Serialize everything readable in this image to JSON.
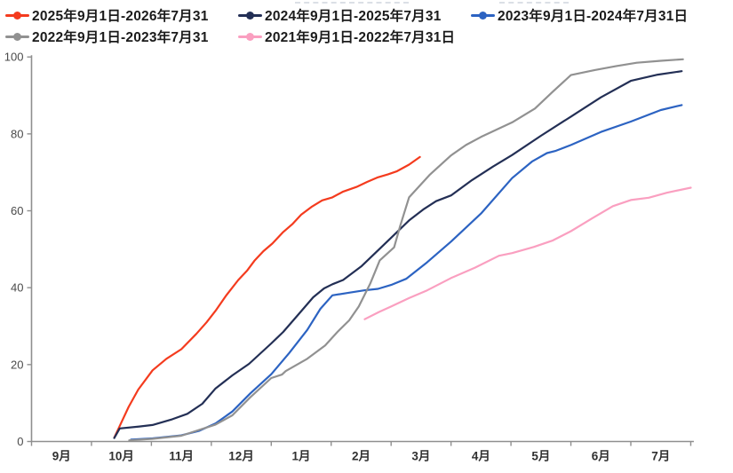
{
  "chart_data": {
    "type": "line",
    "title": "",
    "xlabel": "",
    "ylabel": "",
    "x_unit": "months_after_september_1",
    "xlim": [
      0,
      11
    ],
    "ylim": [
      0,
      100
    ],
    "grid": false,
    "legend_position": "top-left",
    "x_tick_labels": [
      "9月",
      "10月",
      "11月",
      "12月",
      "1月",
      "2月",
      "3月",
      "4月",
      "5月",
      "6月",
      "7月"
    ],
    "y_ticks": [
      0,
      20,
      40,
      60,
      80,
      100
    ],
    "axis_color": "#8f8f8f",
    "series": [
      {
        "name": "2025年9月1日-2026年7月31",
        "color": "#f43b1e",
        "points": [
          [
            1.38,
            1
          ],
          [
            1.5,
            5
          ],
          [
            1.62,
            9
          ],
          [
            1.78,
            13.5
          ],
          [
            2.02,
            18.5
          ],
          [
            2.25,
            21.5
          ],
          [
            2.5,
            24
          ],
          [
            2.75,
            28
          ],
          [
            2.92,
            31
          ],
          [
            3.07,
            34
          ],
          [
            3.25,
            38
          ],
          [
            3.45,
            42
          ],
          [
            3.6,
            44.5
          ],
          [
            3.72,
            47
          ],
          [
            3.87,
            49.5
          ],
          [
            4.02,
            51.5
          ],
          [
            4.2,
            54.5
          ],
          [
            4.35,
            56.5
          ],
          [
            4.5,
            59
          ],
          [
            4.67,
            61
          ],
          [
            4.85,
            62.7
          ],
          [
            5.02,
            63.5
          ],
          [
            5.2,
            65
          ],
          [
            5.42,
            66.2
          ],
          [
            5.6,
            67.5
          ],
          [
            5.78,
            68.7
          ],
          [
            5.95,
            69.5
          ],
          [
            6.1,
            70.3
          ],
          [
            6.3,
            72
          ],
          [
            6.48,
            74
          ]
        ]
      },
      {
        "name": "2024年9月1日-2025年7月31",
        "color": "#232f55",
        "points": [
          [
            1.38,
            0.9
          ],
          [
            1.47,
            3.4
          ],
          [
            1.8,
            3.9
          ],
          [
            2.02,
            4.3
          ],
          [
            2.35,
            5.8
          ],
          [
            2.6,
            7.2
          ],
          [
            2.85,
            9.8
          ],
          [
            3.07,
            13.8
          ],
          [
            3.35,
            17.2
          ],
          [
            3.63,
            20.2
          ],
          [
            4.0,
            25.5
          ],
          [
            4.2,
            28.5
          ],
          [
            4.45,
            33
          ],
          [
            4.7,
            37.5
          ],
          [
            4.88,
            39.8
          ],
          [
            5.02,
            40.9
          ],
          [
            5.2,
            42
          ],
          [
            5.5,
            45.5
          ],
          [
            5.8,
            50
          ],
          [
            6.0,
            53
          ],
          [
            6.3,
            57.5
          ],
          [
            6.55,
            60.5
          ],
          [
            6.75,
            62.5
          ],
          [
            7.0,
            64
          ],
          [
            7.35,
            68
          ],
          [
            7.7,
            71.5
          ],
          [
            8.02,
            74.5
          ],
          [
            8.5,
            79.5
          ],
          [
            9.0,
            84.5
          ],
          [
            9.5,
            89.5
          ],
          [
            10.0,
            93.8
          ],
          [
            10.45,
            95.4
          ],
          [
            10.85,
            96.3
          ]
        ]
      },
      {
        "name": "2023年9月1日-2024年7月31日",
        "color": "#2c63c2",
        "points": [
          [
            1.66,
            0.5
          ],
          [
            2.02,
            0.8
          ],
          [
            2.5,
            1.6
          ],
          [
            2.8,
            2.8
          ],
          [
            3.07,
            4.7
          ],
          [
            3.35,
            7.8
          ],
          [
            3.65,
            12.5
          ],
          [
            4.0,
            17.5
          ],
          [
            4.3,
            23
          ],
          [
            4.6,
            29
          ],
          [
            4.82,
            34.5
          ],
          [
            5.02,
            38
          ],
          [
            5.3,
            38.7
          ],
          [
            5.55,
            39.3
          ],
          [
            5.78,
            39.7
          ],
          [
            6.0,
            40.7
          ],
          [
            6.25,
            42.3
          ],
          [
            6.6,
            46.6
          ],
          [
            7.0,
            52
          ],
          [
            7.5,
            59.3
          ],
          [
            8.02,
            68.5
          ],
          [
            8.35,
            72.8
          ],
          [
            8.6,
            75
          ],
          [
            8.75,
            75.6
          ],
          [
            9.0,
            77.1
          ],
          [
            9.5,
            80.5
          ],
          [
            10.0,
            83.2
          ],
          [
            10.5,
            86.2
          ],
          [
            10.85,
            87.5
          ]
        ]
      },
      {
        "name": "2022年9月1日-2023年7月31",
        "color": "#919191",
        "points": [
          [
            1.63,
            0.3
          ],
          [
            2.02,
            0.7
          ],
          [
            2.5,
            1.5
          ],
          [
            3.07,
            4.4
          ],
          [
            3.35,
            6.8
          ],
          [
            3.65,
            11.5
          ],
          [
            4.0,
            16.5
          ],
          [
            4.18,
            17.4
          ],
          [
            4.24,
            18.3
          ],
          [
            4.6,
            21.5
          ],
          [
            4.9,
            25
          ],
          [
            5.11,
            28.6
          ],
          [
            5.3,
            31.5
          ],
          [
            5.46,
            35.1
          ],
          [
            5.65,
            41
          ],
          [
            5.81,
            47.1
          ],
          [
            6.05,
            50.5
          ],
          [
            6.15,
            56
          ],
          [
            6.3,
            63.5
          ],
          [
            6.64,
            69.3
          ],
          [
            7.0,
            74.4
          ],
          [
            7.25,
            77.1
          ],
          [
            7.5,
            79.2
          ],
          [
            8.02,
            83
          ],
          [
            8.4,
            86.6
          ],
          [
            8.7,
            91
          ],
          [
            9.0,
            95.3
          ],
          [
            9.4,
            96.6
          ],
          [
            9.75,
            97.6
          ],
          [
            10.1,
            98.5
          ],
          [
            10.5,
            99
          ],
          [
            10.87,
            99.4
          ]
        ]
      },
      {
        "name": "2021年9月1日-2022年7月31日",
        "color": "#fa9fc0",
        "points": [
          [
            5.56,
            31.8
          ],
          [
            5.8,
            33.7
          ],
          [
            6.0,
            35.1
          ],
          [
            6.3,
            37.3
          ],
          [
            6.6,
            39.3
          ],
          [
            7.0,
            42.5
          ],
          [
            7.4,
            45.2
          ],
          [
            7.8,
            48.3
          ],
          [
            8.02,
            49
          ],
          [
            8.38,
            50.6
          ],
          [
            8.7,
            52.3
          ],
          [
            9.0,
            54.7
          ],
          [
            9.35,
            58
          ],
          [
            9.7,
            61.2
          ],
          [
            10.0,
            62.8
          ],
          [
            10.3,
            63.4
          ],
          [
            10.6,
            64.7
          ],
          [
            11.0,
            66
          ]
        ]
      }
    ]
  }
}
